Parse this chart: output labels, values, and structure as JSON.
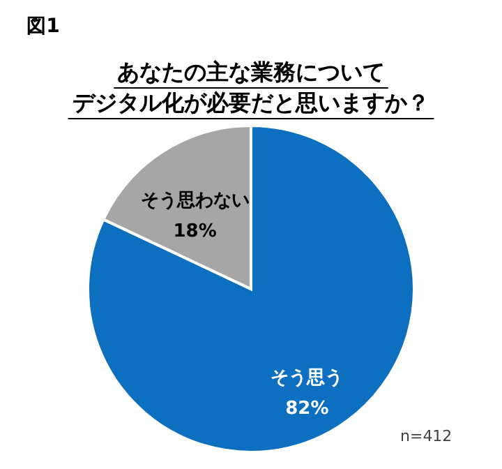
{
  "chart_data": {
    "type": "pie",
    "title": "あなたの主な業務についてデジタル化が必要だと思いますか？",
    "categories": [
      "そう思う",
      "そう思わない"
    ],
    "values": [
      82,
      18
    ],
    "value_labels": [
      "82%",
      "18%"
    ],
    "colors": [
      "#0d6fc0",
      "#a6a6a6"
    ],
    "annotations": [
      "図1",
      "n=412"
    ]
  }
}
